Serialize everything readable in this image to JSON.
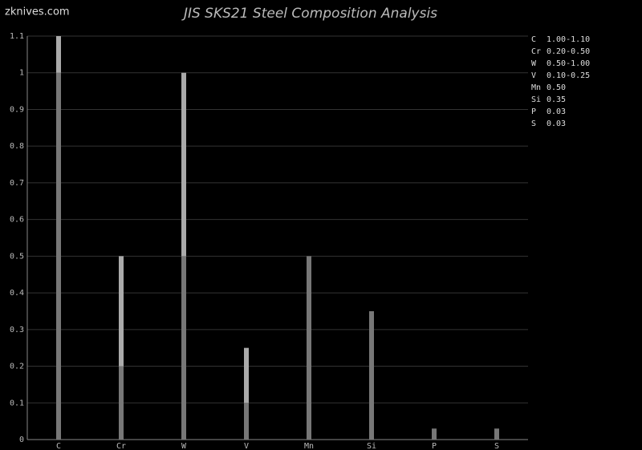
{
  "watermark": "zknives.com",
  "chart_data": {
    "type": "range-bar",
    "title": "JIS SKS21 Steel Composition Analysis",
    "categories": [
      "C",
      "Cr",
      "W",
      "V",
      "Mn",
      "Si",
      "P",
      "S"
    ],
    "series": [
      {
        "name": "min",
        "color": "#777777",
        "values": [
          1.0,
          0.2,
          0.5,
          0.1,
          null,
          null,
          null,
          null
        ]
      },
      {
        "name": "max",
        "color": "#aaaaaa",
        "values": [
          1.1,
          0.5,
          1.0,
          0.25,
          0.5,
          0.35,
          0.03,
          0.03
        ]
      }
    ],
    "value_labels": [
      "1.00-1.10",
      "0.20-0.50",
      "0.50-1.00",
      "0.10-0.25",
      "0.50",
      "0.35",
      "0.03",
      "0.03"
    ],
    "ylim": [
      0,
      1.1
    ],
    "yticks": [
      0,
      0.1,
      0.2,
      0.3,
      0.4,
      0.5,
      0.6,
      0.7,
      0.8,
      0.9,
      1,
      1.1
    ],
    "grid": true
  }
}
